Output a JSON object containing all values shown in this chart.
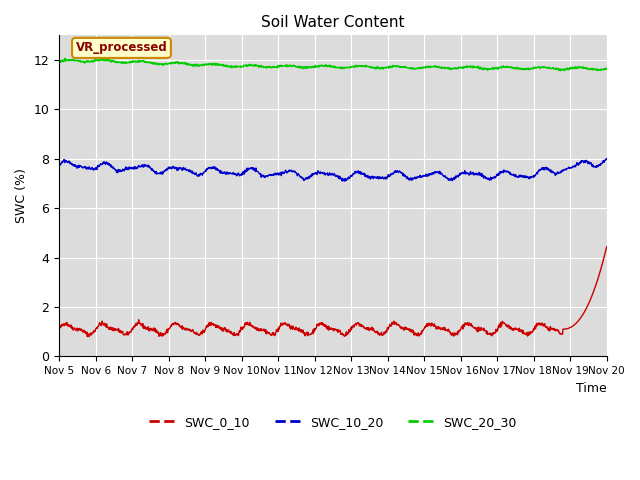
{
  "title": "Soil Water Content",
  "xlabel": "Time",
  "ylabel": "SWC (%)",
  "annotation_text": "VR_processed",
  "background_color": "#dcdcdc",
  "ylim": [
    0,
    13
  ],
  "yticks": [
    0,
    2,
    4,
    6,
    8,
    10,
    12
  ],
  "xtick_labels": [
    "Nov 5",
    "Nov 6",
    "Nov 7",
    "Nov 8",
    "Nov 9",
    "Nov 10",
    "Nov 11",
    "Nov 12",
    "Nov 13",
    "Nov 14",
    "Nov 15",
    "Nov 16",
    "Nov 17",
    "Nov 18",
    "Nov 19",
    "Nov 20"
  ],
  "line_colors": {
    "SWC_0_10": "#cc0000",
    "SWC_10_20": "#0000cc",
    "SWC_20_30": "#00cc00"
  },
  "legend_labels": [
    "SWC_0_10",
    "SWC_10_20",
    "SWC_20_30"
  ],
  "legend_colors": [
    "#cc0000",
    "#0000cc",
    "#00cc00"
  ]
}
